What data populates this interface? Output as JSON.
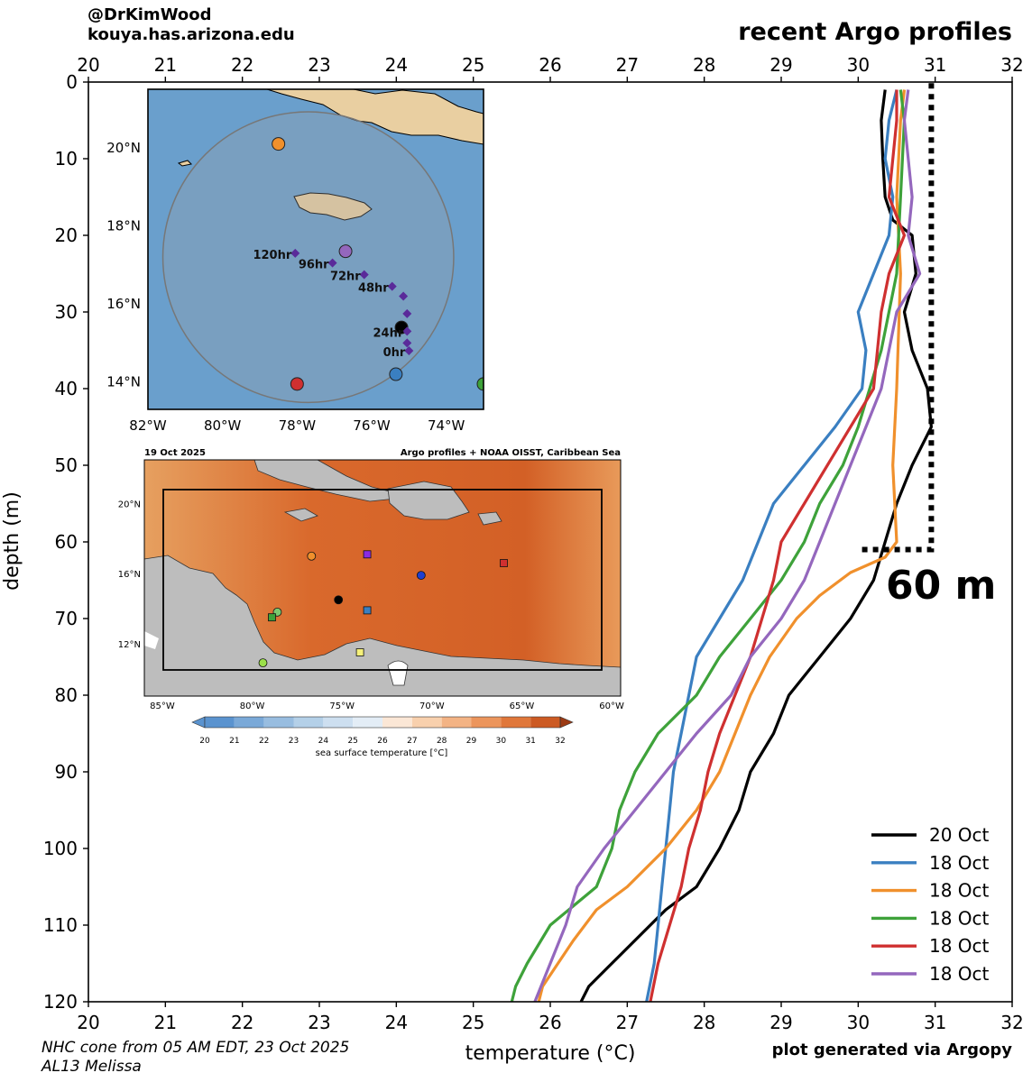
{
  "credit": {
    "handle": "@DrKimWood",
    "site": "kouya.has.arizona.edu"
  },
  "title": "recent Argo profiles",
  "annotation_60m": "60 m",
  "footer": {
    "nhc_line1": "NHC cone from 05 AM EDT, 23 Oct 2025",
    "nhc_line2": "AL13 Melissa",
    "generated": "plot generated via Argopy"
  },
  "colors": {
    "black": "#000000",
    "blue": "#3a7fc1",
    "orange": "#f0902c",
    "green": "#3ea23a",
    "red": "#cf3030",
    "purple": "#9467bd",
    "ocean_blue": "#6a9fcc",
    "land_tan": "#e9cfa1",
    "sst_orange": "#d96a2c"
  },
  "chart_data": {
    "type": "line",
    "xlabel": "temperature (°C)",
    "ylabel": "depth (m)",
    "xlim": [
      20,
      32
    ],
    "ylim": [
      120,
      0
    ],
    "x_ticks": [
      "20",
      "21",
      "22",
      "23",
      "24",
      "25",
      "26",
      "27",
      "28",
      "29",
      "30",
      "31",
      "32"
    ],
    "y_ticks": [
      "0",
      "10",
      "20",
      "30",
      "40",
      "50",
      "60",
      "70",
      "80",
      "90",
      "100",
      "110",
      "120"
    ],
    "mixed_layer_marker": {
      "depth": 61,
      "temp_start": 30.05,
      "temp_end": 30.95
    },
    "legend_position": "bottom-right",
    "series": [
      {
        "name": "20 Oct",
        "color_key": "black",
        "points": [
          [
            30.35,
            1
          ],
          [
            30.3,
            5
          ],
          [
            30.32,
            10
          ],
          [
            30.35,
            15
          ],
          [
            30.45,
            18
          ],
          [
            30.7,
            20
          ],
          [
            30.75,
            25
          ],
          [
            30.6,
            30
          ],
          [
            30.7,
            35
          ],
          [
            30.9,
            40
          ],
          [
            30.95,
            45
          ],
          [
            30.7,
            50
          ],
          [
            30.5,
            55
          ],
          [
            30.35,
            60
          ],
          [
            30.2,
            65
          ],
          [
            29.9,
            70
          ],
          [
            29.5,
            75
          ],
          [
            29.1,
            80
          ],
          [
            28.9,
            85
          ],
          [
            28.6,
            90
          ],
          [
            28.45,
            95
          ],
          [
            28.2,
            100
          ],
          [
            27.9,
            105
          ],
          [
            27.5,
            108
          ],
          [
            27.3,
            110
          ],
          [
            27.0,
            113
          ],
          [
            26.7,
            116
          ],
          [
            26.5,
            118
          ],
          [
            26.4,
            120
          ]
        ]
      },
      {
        "name": "18 Oct",
        "color_key": "blue",
        "points": [
          [
            30.5,
            1
          ],
          [
            30.4,
            5
          ],
          [
            30.35,
            10
          ],
          [
            30.45,
            15
          ],
          [
            30.4,
            20
          ],
          [
            30.2,
            25
          ],
          [
            30.0,
            30
          ],
          [
            30.1,
            35
          ],
          [
            30.05,
            40
          ],
          [
            29.7,
            45
          ],
          [
            29.3,
            50
          ],
          [
            28.9,
            55
          ],
          [
            28.7,
            60
          ],
          [
            28.5,
            65
          ],
          [
            28.2,
            70
          ],
          [
            27.9,
            75
          ],
          [
            27.8,
            80
          ],
          [
            27.7,
            85
          ],
          [
            27.6,
            90
          ],
          [
            27.55,
            95
          ],
          [
            27.5,
            100
          ],
          [
            27.45,
            105
          ],
          [
            27.4,
            110
          ],
          [
            27.35,
            115
          ],
          [
            27.25,
            120
          ]
        ]
      },
      {
        "name": "18 Oct",
        "color_key": "orange",
        "points": [
          [
            30.6,
            1
          ],
          [
            30.55,
            5
          ],
          [
            30.5,
            15
          ],
          [
            30.55,
            25
          ],
          [
            30.5,
            40
          ],
          [
            30.45,
            50
          ],
          [
            30.5,
            60
          ],
          [
            30.35,
            62
          ],
          [
            29.9,
            64
          ],
          [
            29.5,
            67
          ],
          [
            29.2,
            70
          ],
          [
            28.85,
            75
          ],
          [
            28.6,
            80
          ],
          [
            28.4,
            85
          ],
          [
            28.2,
            90
          ],
          [
            27.9,
            95
          ],
          [
            27.5,
            100
          ],
          [
            27.0,
            105
          ],
          [
            26.6,
            108
          ],
          [
            26.3,
            112
          ],
          [
            26.1,
            115
          ],
          [
            25.9,
            118
          ],
          [
            25.85,
            120
          ]
        ]
      },
      {
        "name": "18 Oct",
        "color_key": "green",
        "points": [
          [
            30.55,
            1
          ],
          [
            30.6,
            5
          ],
          [
            30.55,
            15
          ],
          [
            30.5,
            25
          ],
          [
            30.3,
            35
          ],
          [
            30.0,
            45
          ],
          [
            29.8,
            50
          ],
          [
            29.5,
            55
          ],
          [
            29.3,
            60
          ],
          [
            29.0,
            65
          ],
          [
            28.6,
            70
          ],
          [
            28.2,
            75
          ],
          [
            27.9,
            80
          ],
          [
            27.4,
            85
          ],
          [
            27.1,
            90
          ],
          [
            26.9,
            95
          ],
          [
            26.8,
            100
          ],
          [
            26.6,
            105
          ],
          [
            26.0,
            110
          ],
          [
            25.7,
            115
          ],
          [
            25.55,
            118
          ],
          [
            25.5,
            120
          ]
        ]
      },
      {
        "name": "18 Oct",
        "color_key": "red",
        "points": [
          [
            30.5,
            1
          ],
          [
            30.5,
            5
          ],
          [
            30.4,
            15
          ],
          [
            30.6,
            20
          ],
          [
            30.4,
            25
          ],
          [
            30.3,
            30
          ],
          [
            30.2,
            40
          ],
          [
            29.9,
            45
          ],
          [
            29.6,
            50
          ],
          [
            29.3,
            55
          ],
          [
            29.0,
            60
          ],
          [
            28.9,
            65
          ],
          [
            28.75,
            70
          ],
          [
            28.6,
            75
          ],
          [
            28.4,
            80
          ],
          [
            28.2,
            85
          ],
          [
            28.05,
            90
          ],
          [
            27.95,
            95
          ],
          [
            27.8,
            100
          ],
          [
            27.7,
            105
          ],
          [
            27.55,
            110
          ],
          [
            27.4,
            115
          ],
          [
            27.3,
            120
          ]
        ]
      },
      {
        "name": "18 Oct",
        "color_key": "purple",
        "points": [
          [
            30.65,
            1
          ],
          [
            30.6,
            5
          ],
          [
            30.7,
            15
          ],
          [
            30.65,
            20
          ],
          [
            30.8,
            25
          ],
          [
            30.5,
            30
          ],
          [
            30.3,
            40
          ],
          [
            30.1,
            45
          ],
          [
            29.9,
            50
          ],
          [
            29.7,
            55
          ],
          [
            29.5,
            60
          ],
          [
            29.3,
            65
          ],
          [
            29.0,
            70
          ],
          [
            28.6,
            75
          ],
          [
            28.35,
            80
          ],
          [
            27.9,
            85
          ],
          [
            27.5,
            90
          ],
          [
            27.1,
            95
          ],
          [
            26.7,
            100
          ],
          [
            26.35,
            105
          ],
          [
            26.2,
            110
          ],
          [
            26.0,
            115
          ],
          [
            25.8,
            120
          ]
        ]
      }
    ]
  },
  "inset_cone_map": {
    "type": "scatter",
    "lon_range": [
      -82,
      -73
    ],
    "lat_range": [
      13.3,
      21.5
    ],
    "x_tick_labels": [
      "82°W",
      "80°W",
      "78°W",
      "76°W",
      "74°W"
    ],
    "y_tick_labels": [
      "20°N",
      "18°N",
      "16°N",
      "14°N"
    ],
    "cone": {
      "center_lon": -77.7,
      "center_lat": 17.2,
      "radius_deg": 3.9
    },
    "argo_points": [
      {
        "color_key": "orange",
        "lon": -78.5,
        "lat": 20.1
      },
      {
        "color_key": "purple",
        "lon": -76.7,
        "lat": 17.35
      },
      {
        "color_key": "black",
        "lon": -75.2,
        "lat": 15.4
      },
      {
        "color_key": "blue",
        "lon": -75.35,
        "lat": 14.2
      },
      {
        "color_key": "red",
        "lon": -78.0,
        "lat": 13.95
      },
      {
        "color_key": "green",
        "lon": -73.0,
        "lat": 13.95
      }
    ],
    "track_points": [
      {
        "label": "0hr",
        "lon": -75.0,
        "lat": 14.8
      },
      {
        "label": "",
        "lon": -75.05,
        "lat": 15.0
      },
      {
        "label": "24hr",
        "lon": -75.05,
        "lat": 15.3
      },
      {
        "label": "",
        "lon": -75.05,
        "lat": 15.75
      },
      {
        "label": "",
        "lon": -75.15,
        "lat": 16.2
      },
      {
        "label": "48hr",
        "lon": -75.45,
        "lat": 16.45
      },
      {
        "label": "72hr",
        "lon": -76.2,
        "lat": 16.75
      },
      {
        "label": "96hr",
        "lon": -77.05,
        "lat": 17.05
      },
      {
        "label": "120hr",
        "lon": -78.05,
        "lat": 17.3
      }
    ]
  },
  "inset_sst_map": {
    "type": "scatter",
    "date": "19 Oct 2025",
    "title": "Argo profiles + NOAA OISST, Caribbean Sea",
    "lon_range": [
      -86,
      -59.5
    ],
    "lat_range": [
      9,
      22.5
    ],
    "x_tick_labels": [
      "85°W",
      "80°W",
      "75°W",
      "70°W",
      "65°W",
      "60°W"
    ],
    "y_tick_labels": [
      "20°N",
      "16°N",
      "12°N"
    ],
    "colorbar_ticks": [
      "20",
      "21",
      "22",
      "23",
      "24",
      "25",
      "26",
      "27",
      "28",
      "29",
      "30",
      "31",
      "32"
    ],
    "colorbar_label": "sea surface temperature [°C]",
    "markers": [
      {
        "shape": "circle",
        "color": "#f0902c",
        "lon": -76.7,
        "lat": 17.0
      },
      {
        "shape": "square",
        "color": "#8a2be2",
        "lon": -73.6,
        "lat": 17.1
      },
      {
        "shape": "square",
        "color": "#cf3030",
        "lon": -66.0,
        "lat": 16.6
      },
      {
        "shape": "circle",
        "color": "#1f3fd0",
        "lon": -70.6,
        "lat": 15.9
      },
      {
        "shape": "circle",
        "color": "#000000",
        "lon": -75.2,
        "lat": 14.5
      },
      {
        "shape": "square",
        "color": "#3a7fc1",
        "lon": -73.6,
        "lat": 13.9
      },
      {
        "shape": "circle",
        "color": "#7bc96f",
        "lon": -78.6,
        "lat": 13.8
      },
      {
        "shape": "square",
        "color": "#3ea23a",
        "lon": -78.9,
        "lat": 13.5
      },
      {
        "shape": "square",
        "color": "#f5f07a",
        "lon": -74.0,
        "lat": 11.5
      },
      {
        "shape": "circle",
        "color": "#9be04a",
        "lon": -79.4,
        "lat": 10.9
      }
    ]
  }
}
